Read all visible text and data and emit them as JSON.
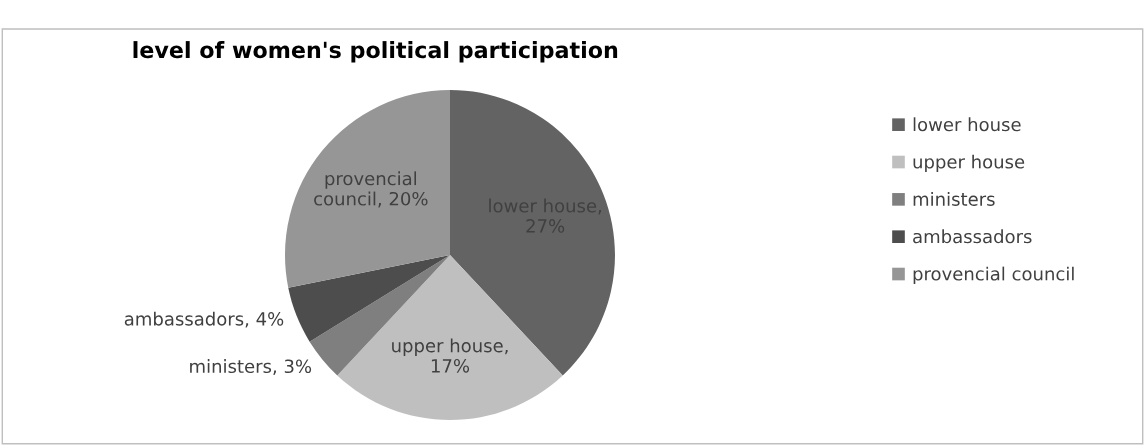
{
  "chart_data": {
    "type": "pie",
    "title": "level of women's political participation",
    "categories": [
      "lower house",
      "upper house",
      "ministers",
      "ambassadors",
      "provencial council"
    ],
    "values": [
      27,
      17,
      3,
      4,
      20
    ],
    "colors": [
      "#636363",
      "#bfbfbf",
      "#7f7f7f",
      "#4d4d4d",
      "#969696"
    ],
    "value_labels": [
      "lower house, 27%",
      "upper house, 17%",
      "ministers, 3%",
      "ambassadors, 4%",
      "provencial council, 20%"
    ],
    "legend": "right"
  }
}
